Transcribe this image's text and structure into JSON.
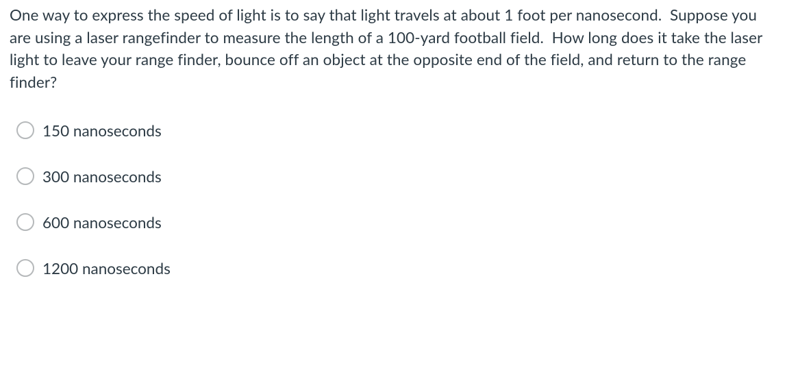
{
  "question": {
    "text": "One way to express the speed of light is to say that light travels at about 1 foot per nanosecond.  Suppose you are using a laser rangefinder to measure the length of a 100-yard football field.  How long does it take the laser light to leave your range finder, bounce off an object at the opposite end of the field, and return to the range finder?"
  },
  "options": [
    {
      "label": "150 nanoseconds"
    },
    {
      "label": "300 nanoseconds"
    },
    {
      "label": "600 nanoseconds"
    },
    {
      "label": "1200 nanoseconds"
    }
  ],
  "style": {
    "text_color": "#2d3b45",
    "background_color": "#ffffff",
    "radio_border_color": "#b6b9bb",
    "font_size_pt": 17,
    "font_family": "Lato, Helvetica Neue, Arial, sans-serif"
  }
}
